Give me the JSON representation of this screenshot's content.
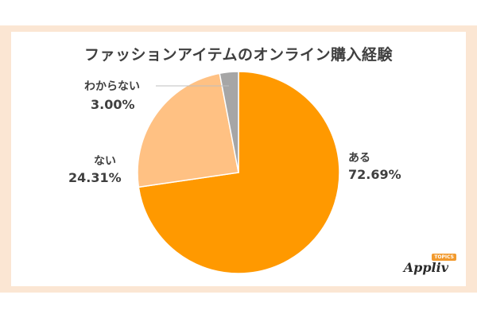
{
  "chart_data": {
    "type": "pie",
    "title": "ファッションアイテムのオンライン購入経験",
    "slices": [
      {
        "name": "ある",
        "value": 72.69,
        "label": "72.69%",
        "color": "#ff9900"
      },
      {
        "name": "ない",
        "value": 24.31,
        "label": "24.31%",
        "color": "#ffc183"
      },
      {
        "name": "わからない",
        "value": 3.0,
        "label": "3.00%",
        "color": "#a6a6a6"
      }
    ],
    "legend": "none",
    "start_angle": "12 o'clock, clockwise"
  },
  "branding": {
    "logo": "Appliv",
    "badge": "TOPICS"
  }
}
